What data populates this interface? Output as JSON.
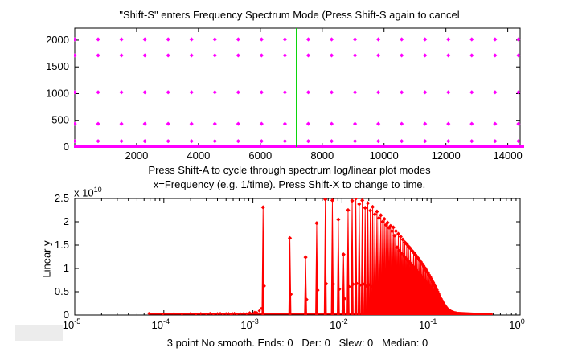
{
  "figure": {
    "title": "\"Shift-S\" enters Frequency Spectrum Mode (Press Shift-S again to cancel",
    "instruction1": "Press Shift-A to cycle through spectrum log/linear plot modes",
    "instruction2": "x=Frequency (e.g. 1/time). Press Shift-X to change to time.",
    "status": "3 point No smooth. Ends: 0   Der: 0   Slew: 0   Median: 0"
  },
  "colors": {
    "marker_magenta": "#FF00FF",
    "cursor_green": "#00D400",
    "spectrum_red": "#FF0000",
    "axis_black": "#000000",
    "gray_box": "#ECECEC",
    "background": "#FFFFFF"
  },
  "chart_data": [
    {
      "type": "scatter",
      "description": "time-domain data grid view",
      "xlim": [
        0,
        14400
      ],
      "ylim": [
        0,
        2225
      ],
      "xticks": [
        2000,
        4000,
        6000,
        8000,
        10000,
        12000,
        14000
      ],
      "yticks": [
        0,
        500,
        1000,
        1500,
        2000
      ],
      "grid_x_start": 0,
      "grid_x_step": 755,
      "grid_x_count": 20,
      "grid_y_rows": [
        2015,
        1715,
        1025,
        435,
        110
      ],
      "baseline_y": 0,
      "baseline_thickness_px": 4,
      "cursor_line_x": 7170,
      "marker": "diamond",
      "grid": false,
      "legend": "none"
    },
    {
      "type": "line",
      "description": "frequency spectrum, harmonic peaks with markers",
      "xscale": "log",
      "xlim": [
        1e-05,
        1
      ],
      "ylim": [
        0,
        25000000000.0
      ],
      "xtick_exponents": [
        -5,
        -4,
        -3,
        -2,
        -1,
        0
      ],
      "yticks": [
        0,
        0.5,
        1,
        1.5,
        2,
        2.5
      ],
      "ylabel": "Linear y",
      "y_multiplier_mantissa": "x 10",
      "y_multiplier_exponent": "10",
      "fundamental_hz": 0.0013,
      "harmonic_heights_e10": [
        2.31,
        1.65,
        1.24,
        1.97,
        2.48,
        2.46,
        2.05,
        1.3,
        2.25,
        2.45,
        2.5,
        2.38,
        2.46,
        2.3,
        2.4,
        2.24,
        2.32,
        2.16,
        2.22,
        2.08,
        2.14,
        2.0,
        2.06,
        1.93,
        1.98,
        1.87,
        1.91,
        1.8,
        1.88,
        1.7,
        1.8,
        1.45,
        1.74,
        1.38,
        1.68,
        1.32,
        1.62,
        1.27,
        1.56,
        1.22,
        1.52,
        1.17,
        1.47,
        1.13,
        1.43,
        1.09,
        1.38,
        1.05,
        1.34,
        1.01,
        1.3,
        0.97,
        1.26,
        0.93,
        1.22,
        0.9,
        1.18,
        0.86,
        1.14,
        0.83,
        1.1,
        0.79,
        1.06,
        0.76,
        1.02,
        0.73,
        0.98,
        0.7,
        0.94,
        0.67,
        0.9,
        0.64,
        0.86,
        0.61,
        0.82,
        0.58,
        0.78,
        0.55,
        0.74,
        0.52,
        0.7,
        0.49,
        0.66,
        0.46,
        0.62,
        0.43,
        0.58,
        0.4,
        0.54,
        0.37,
        0.5,
        0.34,
        0.46,
        0.31,
        0.42,
        0.28,
        0.38,
        0.26,
        0.35,
        0.23,
        0.32,
        0.21,
        0.29,
        0.19,
        0.26,
        0.17,
        0.23,
        0.15,
        0.21,
        0.13,
        0.19,
        0.12,
        0.17,
        0.11,
        0.15,
        0.1,
        0.13,
        0.09,
        0.12,
        0.08,
        0.11,
        0.07,
        0.1,
        0.065,
        0.09,
        0.06,
        0.08,
        0.055,
        0.07,
        0.05,
        0.065,
        0.045,
        0.06,
        0.04,
        0.055,
        0.038,
        0.05,
        0.035,
        0.045,
        0.033,
        0.042,
        0.03,
        0.04,
        0.028,
        0.038,
        0.027,
        0.035,
        0.026,
        0.033,
        0.025
      ],
      "noise_floor_points": [
        [
          6.8e-05,
          0.035
        ],
        [
          9.8e-05,
          0.02
        ],
        [
          0.00013,
          0.03
        ],
        [
          0.00016,
          0.02
        ],
        [
          0.0002,
          0.035
        ],
        [
          0.00023,
          0.02
        ],
        [
          0.00026,
          0.03
        ],
        [
          0.0003,
          0.02
        ],
        [
          0.00033,
          0.035
        ],
        [
          0.00036,
          0.02
        ],
        [
          0.0004,
          0.03
        ],
        [
          0.00043,
          0.035
        ],
        [
          0.00046,
          0.02
        ],
        [
          0.0005,
          0.03
        ],
        [
          0.00053,
          0.035
        ],
        [
          0.00056,
          0.02
        ],
        [
          0.00059,
          0.03
        ],
        [
          0.00062,
          0.035
        ],
        [
          0.00066,
          0.02
        ],
        [
          0.00072,
          0.03
        ],
        [
          0.00079,
          0.035
        ],
        [
          0.00085,
          0.025
        ],
        [
          0.00092,
          0.05
        ],
        [
          0.00098,
          0.035
        ],
        [
          0.00105,
          0.06
        ],
        [
          0.00111,
          0.05
        ],
        [
          0.00118,
          0.09
        ],
        [
          0.00124,
          0.14
        ]
      ],
      "baseline": {
        "x_start": 6.8e-05,
        "x_end": 0.49,
        "y_e10": 0.025
      },
      "grid": false,
      "legend": "none"
    }
  ]
}
